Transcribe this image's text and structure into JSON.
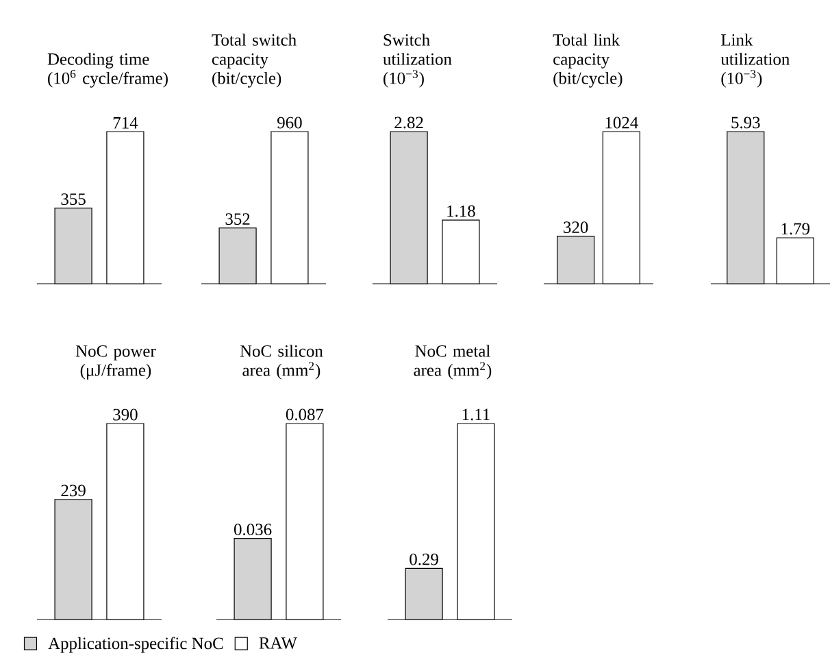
{
  "chart_data": [
    {
      "type": "bar",
      "title": "Decoding time",
      "subtitle": "(10$^{6}$ cycle/frame)",
      "categories": [
        null
      ],
      "data_labels": true,
      "series": [
        {
          "color": "#d3d3d3",
          "values": [
            355
          ]
        },
        {
          "color": "#ffffff",
          "values": [
            714
          ]
        }
      ]
    },
    {
      "type": "bar",
      "title": "Total switch capacity",
      "subtitle": "(bit/cycle)",
      "categories": [
        null
      ],
      "data_labels": true,
      "series": [
        {
          "color": "#d3d3d3",
          "values": [
            352
          ]
        },
        {
          "color": "#ffffff",
          "values": [
            960
          ]
        }
      ]
    },
    {
      "type": "bar",
      "title": "Switch utilization",
      "subtitle": "(10$^{−3}$)",
      "categories": [
        null
      ],
      "data_labels": true,
      "series": [
        {
          "color": "#d3d3d3",
          "values": [
            2.82
          ]
        },
        {
          "color": "#ffffff",
          "values": [
            1.18
          ]
        }
      ]
    },
    {
      "type": "bar",
      "title": "Total link capacity",
      "subtitle": "(bit/cycle)",
      "categories": [
        null
      ],
      "data_labels": true,
      "series": [
        {
          "color": "#d3d3d3",
          "values": [
            320
          ]
        },
        {
          "color": "#ffffff",
          "values": [
            1024
          ]
        }
      ]
    },
    {
      "type": "bar",
      "title": "Link utilization",
      "subtitle": "(10$^{−3}$)",
      "categories": [
        null
      ],
      "data_labels": true,
      "series": [
        {
          "color": "#d3d3d3",
          "values": [
            5.93
          ]
        },
        {
          "color": "#ffffff",
          "values": [
            1.79
          ]
        }
      ]
    },
    {
      "type": "bar",
      "title": "NoC power",
      "subtitle": "(μJ/frame)",
      "categories": [
        null
      ],
      "data_labels": true,
      "legend": "bottom",
      "series": [
        {
          "name": "Application-specific NoC",
          "color": "#d3d3d3",
          "values": [
            239
          ]
        },
        {
          "name": "RAW",
          "color": "#ffffff",
          "values": [
            390
          ]
        }
      ]
    },
    {
      "type": "bar",
      "title": "NoC silicon area (mm$^{2}$)",
      "categories": [
        null
      ],
      "data_labels": true,
      "series": [
        {
          "color": "#d3d3d3",
          "values": [
            0.036
          ]
        },
        {
          "color": "#ffffff",
          "values": [
            0.087
          ]
        }
      ]
    },
    {
      "type": "bar",
      "title": "NoC metal area (mm$^{2}$)",
      "categories": [
        null
      ],
      "data_labels": true,
      "series": [
        {
          "color": "#d3d3d3",
          "values": [
            0.29
          ]
        },
        {
          "color": "#ffffff",
          "values": [
            1.11
          ]
        }
      ]
    }
  ]
}
